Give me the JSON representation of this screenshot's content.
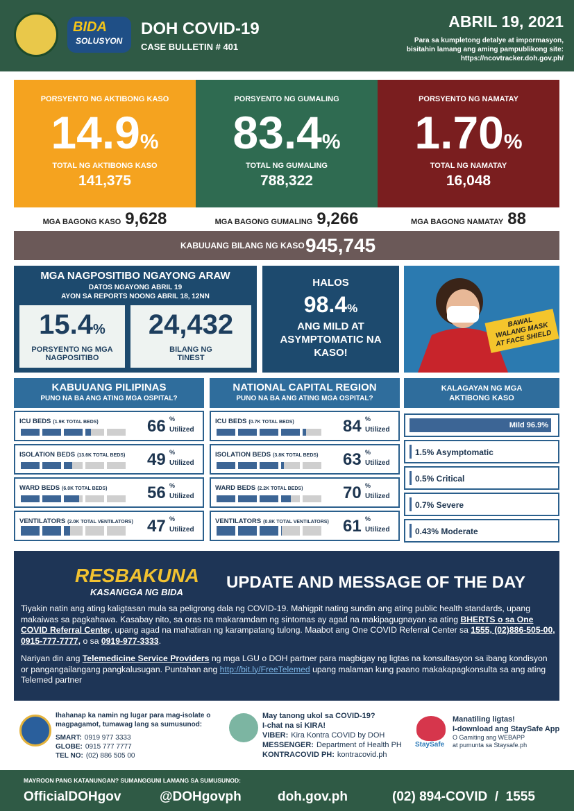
{
  "header": {
    "title": "DOH COVID-19",
    "subtitle": "CASE BULLETIN # 401",
    "date": "ABRIL 19, 2021",
    "note_lines": [
      "Para sa kumpletong detalye at impormasyon,",
      "bisitahin lamang ang aming pampublikong site:"
    ],
    "url": "https://ncovtracker.doh.gov.ph/",
    "logo_texts": [
      "BIDA",
      "SOLUSYON"
    ]
  },
  "summary": [
    {
      "label": "PORSYENTO NG AKTIBONG KASO",
      "value": "14.9",
      "unit": "%",
      "total_label": "TOTAL NG AKTIBONG KASO",
      "total": "141,375"
    },
    {
      "label": "PORSYENTO NG GUMALING",
      "value": "83.4",
      "unit": "%",
      "total_label": "TOTAL NG GUMALING",
      "total": "788,322"
    },
    {
      "label": "PORSYENTO NG NAMATAY",
      "value": "1.70",
      "unit": "%",
      "total_label": "TOTAL NG NAMATAY",
      "total": "16,048"
    }
  ],
  "new_cases": [
    {
      "label": "MGA BAGONG KASO",
      "value": "9,628"
    },
    {
      "label": "MGA BAGONG GUMALING",
      "value": "9,266"
    },
    {
      "label": "MGA BAGONG NAMATAY",
      "value": "88"
    }
  ],
  "total_cases": {
    "label": "KABUUANG BILANG NG KASO",
    "value": "945,745"
  },
  "positives": {
    "title": "MGA NAGPOSITIBO NGAYONG ARAW",
    "lines": [
      "DATOS NGAYONG ABRIL 19",
      "AYON SA REPORTS NOONG ABRIL 18, 12NN"
    ],
    "rate": {
      "value": "15.4",
      "unit": "%",
      "label": "PORSYENTO NG MGA NAGPOSITIBO"
    },
    "tested": {
      "value": "24,432",
      "label": "BILANG NG TINEST"
    }
  },
  "mild": {
    "lead": "HALOS",
    "value": "98.4",
    "unit": "%",
    "text": "ANG MILD AT ASYMPTOMATIC NA KASO!"
  },
  "poster": {
    "lines": [
      "BAWAL",
      "WALANG MASK",
      "AT FACE SHIELD"
    ]
  },
  "hospitals": [
    {
      "title": "KABUUANG PILIPINAS",
      "subtitle": "PUNO NA BA ANG ATING MGA OSPITAL?",
      "unit": "%",
      "suffix": "Utilized",
      "rows": [
        {
          "label": "ICU BEDS",
          "total": "(1.9K TOTAL BEDS)",
          "value": 66
        },
        {
          "label": "ISOLATION BEDS",
          "total": "(13.6K TOTAL BEDS)",
          "value": 49
        },
        {
          "label": "WARD BEDS",
          "total": "(6.0K TOTAL BEDS)",
          "value": 56
        },
        {
          "label": "VENTILATORS",
          "total": "(2.0K TOTAL VENTILATORS)",
          "value": 47
        }
      ]
    },
    {
      "title": "NATIONAL CAPITAL REGION",
      "subtitle": "PUNO NA BA ANG ATING MGA OSPITAL?",
      "unit": "%",
      "suffix": "Utilized",
      "rows": [
        {
          "label": "ICU BEDS",
          "total": "(0.7K TOTAL BEDS)",
          "value": 84
        },
        {
          "label": "ISOLATION BEDS",
          "total": "(3.8K TOTAL BEDS)",
          "value": 63
        },
        {
          "label": "WARD BEDS",
          "total": "(2.2K TOTAL BEDS)",
          "value": 70
        },
        {
          "label": "VENTILATORS",
          "total": "(0.8K TOTAL VENTILATORS)",
          "value": 61
        }
      ]
    }
  ],
  "status": {
    "title": "KALAGAYAN NG MGA AKTIBONG KASO",
    "items": [
      "Mild 96.9%",
      "1.5% Asymptomatic",
      "0.5% Critical",
      "0.7% Severe",
      "0.43% Moderate"
    ]
  },
  "message": {
    "logo": [
      "RESBAKUNA",
      "KASANGGA NG BIDA"
    ],
    "title": "UPDATE AND MESSAGE OF THE DAY",
    "paragraphs": [
      [
        {
          "text": "Tiyakin natin ang ating kaligtasan mula sa peligrong dala ng COVID-19. Mahigpit nating sundin ang ating public health standards, upang makaiwas sa pagkahawa. Kasabay nito, sa oras na makaramdam ng sintomas ay agad na makipagugnayan sa ating "
        },
        {
          "text": "BHERTS o sa One COVID Referral Cente",
          "style": "bold"
        },
        {
          "text": "r, upang agad na mahatiran ng karampatang tulong. Maabot ang One COVID Referral Center sa "
        },
        {
          "text": "1555, (02)886-505-00, 0915-777-7777,",
          "style": "bold"
        },
        {
          "text": " o sa "
        },
        {
          "text": "0919-977-3333",
          "style": "bold"
        },
        {
          "text": "."
        }
      ],
      [
        {
          "text": "Nariyan din ang "
        },
        {
          "text": "Telemedicine Service Providers",
          "style": "bold"
        },
        {
          "text": " ng mga LGU o DOH partner para magbigay ng ligtas na konsultasyon sa ibang kondisyon or pangangailangang pangkalusugan. Puntahan ang "
        },
        {
          "text": "http://bit.ly/FreeTelemed",
          "style": "link"
        },
        {
          "text": " upang malaman kung paano makakapagkonsulta sa ang ating Telemed partner"
        }
      ]
    ]
  },
  "footer": {
    "isolation": {
      "text": "Ihahanap ka namin ng lugar para mag-isolate o magpagamot, tumawag lang sa sumusunod:",
      "lines": [
        {
          "label": "SMART:",
          "value": "0919 977 3333"
        },
        {
          "label": "GLOBE:",
          "value": "0915 777 7777"
        },
        {
          "label": "TEL NO:",
          "value": "(02) 886 505 00"
        }
      ]
    },
    "kira": {
      "lines": [
        "May tanong ukol sa COVID-19?",
        "I-chat na si KIRA!"
      ],
      "contacts": [
        {
          "label": "VIBER:",
          "value": "Kira Kontra COVID by DOH"
        },
        {
          "label": "MESSENGER:",
          "value": "Department of Health PH"
        },
        {
          "label": "KONTRACOVID PH:",
          "value": "kontracovid.ph"
        }
      ]
    },
    "staysafe": {
      "logo": "StaySafe",
      "lines": [
        "Manatiling ligtas!",
        "I-download ang StaySafe App"
      ],
      "small": [
        "O Gamiting ang WEBAPP",
        "at pumunta sa Staysafe.ph"
      ]
    }
  },
  "contact": {
    "note": "MAYROON PANG KATANUNGAN? SUMANGGUNI LAMANG SA SUMUSUNOD:",
    "items": [
      "OfficialDOHgov",
      "@DOHgovph",
      "doh.gov.ph",
      "(02) 894-COVID  /  1555"
    ]
  }
}
